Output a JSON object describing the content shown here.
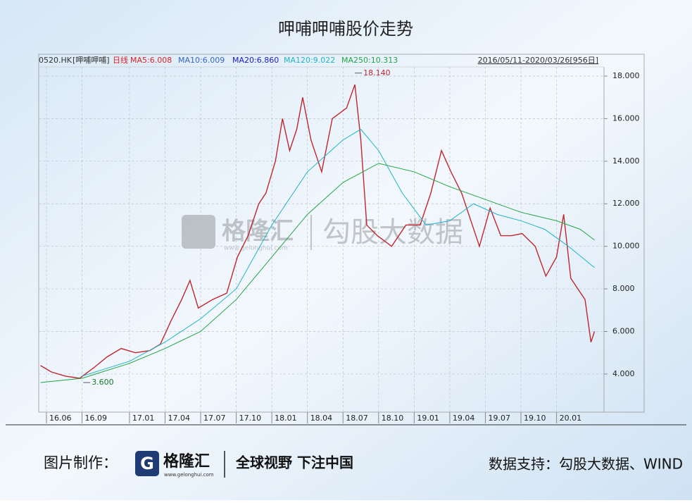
{
  "title": "呷哺呷哺股价走势",
  "chart_data": {
    "type": "line",
    "header": {
      "code": "0520.HK",
      "name": "[呷哺呷哺]",
      "period": "日线",
      "range": "2016/05/11-2020/03/26[956日]"
    },
    "ma_labels": [
      {
        "text": "MA5:6.008",
        "color": "#d8232a"
      },
      {
        "text": "MA10:6.009",
        "color": "#3366cc"
      },
      {
        "text": "MA20:6.860",
        "color": "#1a1acc"
      },
      {
        "text": "MA120:9.022",
        "color": "#1fb3c8"
      },
      {
        "text": "MA250:10.313",
        "color": "#22a544"
      }
    ],
    "xlim": [
      4.35,
      52
    ],
    "xticks": [
      {
        "value": 5,
        "label": "16.06"
      },
      {
        "value": 8,
        "label": "16.09"
      },
      {
        "value": 12,
        "label": "17.01"
      },
      {
        "value": 15,
        "label": "17.04"
      },
      {
        "value": 18,
        "label": "17.07"
      },
      {
        "value": 21,
        "label": "17.10"
      },
      {
        "value": 24,
        "label": "18.01"
      },
      {
        "value": 27,
        "label": "18.04"
      },
      {
        "value": 30,
        "label": "18.07"
      },
      {
        "value": 33,
        "label": "18.10"
      },
      {
        "value": 36,
        "label": "19.01"
      },
      {
        "value": 39,
        "label": "19.04"
      },
      {
        "value": 42,
        "label": "19.07"
      },
      {
        "value": 45,
        "label": "19.10"
      },
      {
        "value": 48,
        "label": "20.01"
      }
    ],
    "ylim": [
      2.21,
      18.43
    ],
    "yticks": [
      {
        "value": 4,
        "label": "4.000"
      },
      {
        "value": 6,
        "label": "6.000"
      },
      {
        "value": 8,
        "label": "8.000"
      },
      {
        "value": 10,
        "label": "10.000"
      },
      {
        "value": 12,
        "label": "12.000"
      },
      {
        "value": 14,
        "label": "14.000"
      },
      {
        "value": 16,
        "label": "16.000"
      },
      {
        "value": 18,
        "label": "18.000"
      }
    ],
    "grid": true,
    "series": [
      {
        "color": "#c0262d",
        "x": [
          4.5,
          5.4,
          6.6,
          7.8,
          9.0,
          10.1,
          11.3,
          12.5,
          13.7,
          14.6,
          15.5,
          16.4,
          17.1,
          17.8,
          19.0,
          20.2,
          21.1,
          22.0,
          22.9,
          23.5,
          24.3,
          24.9,
          25.5,
          26.1,
          26.6,
          27.3,
          28.2,
          29.1,
          30.3,
          31.0,
          31.5,
          32.0,
          32.9,
          34.1,
          35.3,
          36.5,
          37.4,
          38.3,
          39.1,
          40.0,
          40.9,
          41.5,
          42.4,
          43.3,
          44.2,
          45.1,
          46.2,
          47.1,
          48.0,
          48.6,
          49.2,
          49.8,
          50.4,
          50.9,
          51.2
        ],
        "values": [
          4.4,
          4.1,
          3.9,
          3.8,
          4.3,
          4.8,
          5.2,
          5.0,
          5.1,
          5.4,
          6.5,
          7.5,
          8.4,
          7.1,
          7.5,
          7.8,
          9.5,
          10.5,
          12.0,
          12.5,
          14.0,
          16.0,
          14.5,
          15.5,
          17.0,
          15.0,
          13.5,
          16.0,
          16.5,
          17.6,
          15.0,
          11.0,
          10.5,
          10.0,
          11.0,
          11.0,
          12.5,
          14.5,
          13.5,
          12.5,
          11.0,
          10.0,
          11.8,
          10.5,
          10.5,
          10.6,
          10.0,
          8.6,
          9.5,
          11.5,
          8.5,
          8.0,
          7.5,
          5.5,
          6.0
        ]
      },
      {
        "color": "#1fb3c8",
        "x": [
          8,
          12,
          15,
          18,
          21,
          24,
          27,
          30,
          31.5,
          33,
          35,
          37,
          39,
          41,
          43,
          45,
          47,
          49,
          51.2
        ],
        "values": [
          3.9,
          4.6,
          5.5,
          6.6,
          8.0,
          11.0,
          13.5,
          15.0,
          15.5,
          14.5,
          12.5,
          11.0,
          11.2,
          12.0,
          11.5,
          11.2,
          10.8,
          10.0,
          9.0
        ]
      },
      {
        "color": "#22a544",
        "x": [
          4.5,
          8,
          12,
          15,
          18,
          21,
          24,
          27,
          30,
          33,
          36,
          39,
          42,
          45,
          48,
          50,
          51.2
        ],
        "values": [
          3.6,
          3.8,
          4.5,
          5.2,
          6.0,
          7.5,
          9.5,
          11.5,
          13.0,
          13.9,
          13.5,
          12.8,
          12.2,
          11.6,
          11.2,
          10.8,
          10.3
        ]
      }
    ],
    "annotations": [
      {
        "x": 31.0,
        "value": 18.14,
        "label": "18.140"
      },
      {
        "x": 8.1,
        "value": 3.6,
        "label": "3.600"
      }
    ]
  },
  "watermark": {
    "logo": "格隆汇",
    "url": "www.gelonghui.com",
    "brand": "勾股大数据"
  },
  "footer": {
    "credit": "图片制作：",
    "logo": "格隆汇",
    "logo_url": "www.gelonghui.com",
    "slogan": "全球视野 下注中国",
    "source": "数据支持：勾股大数据、WIND"
  }
}
